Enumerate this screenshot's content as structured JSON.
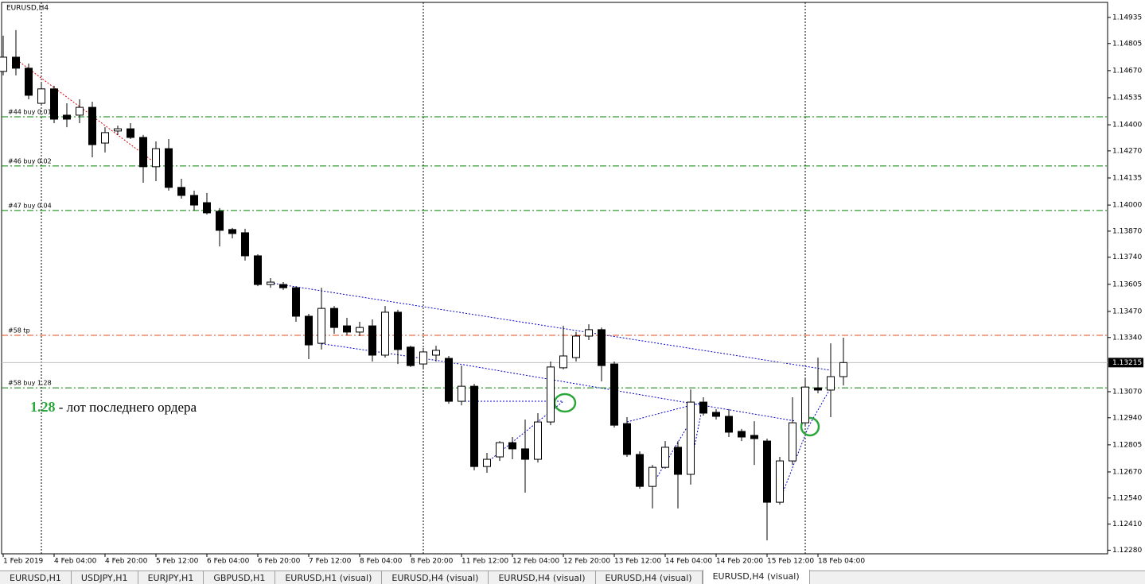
{
  "chart_data": {
    "type": "candlestick",
    "title": "EURUSD,H4",
    "categories": [
      "1 Feb 2019",
      null,
      null,
      null,
      "4 Feb 04:00",
      null,
      null,
      null,
      "4 Feb 20:00",
      null,
      null,
      null,
      "5 Feb 12:00",
      null,
      null,
      null,
      "6 Feb 04:00",
      null,
      null,
      null,
      "6 Feb 20:00",
      null,
      null,
      null,
      "7 Feb 12:00",
      null,
      null,
      null,
      "8 Feb 04:00",
      null,
      null,
      null,
      "8 Feb 20:00",
      null,
      null,
      null,
      "11 Feb 12:00",
      null,
      null,
      null,
      "12 Feb 04:00",
      null,
      null,
      null,
      "12 Feb 20:00",
      null,
      null,
      null,
      "13 Feb 12:00",
      null,
      null,
      null,
      "14 Feb 04:00",
      null,
      null,
      null,
      "14 Feb 20:00",
      null,
      null,
      null,
      "15 Feb 12:00",
      null,
      null,
      null,
      "18 Feb 04:00",
      null,
      null
    ],
    "open": [
      1.14666,
      1.14737,
      1.14682,
      1.14507,
      1.14579,
      1.14448,
      1.14448,
      1.14487,
      1.14309,
      1.14369,
      1.1438,
      1.14337,
      1.14191,
      1.14281,
      1.14088,
      1.14048,
      1.14012,
      1.13969,
      1.13878,
      1.13862,
      1.13747,
      1.13604,
      1.13604,
      1.13588,
      1.13446,
      1.13311,
      1.13485,
      1.13398,
      1.13367,
      1.13398,
      1.13252,
      1.13466,
      1.13292,
      1.13208,
      1.13252,
      1.13236,
      1.13022,
      1.13097,
      1.12697,
      1.12745,
      1.12816,
      1.12785,
      1.12733,
      1.12919,
      1.13189,
      1.1324,
      1.13347,
      1.13379,
      1.13208,
      1.12911,
      1.12757,
      1.12598,
      1.12693,
      1.12793,
      1.12658,
      1.13018,
      1.12967,
      1.12947,
      1.12872,
      1.12852,
      1.12824,
      1.12519,
      1.12725,
      1.12915,
      1.13089,
      1.13078,
      1.13145
    ],
    "high": [
      1.14844,
      1.14872,
      1.14705,
      1.14606,
      1.14594,
      1.14507,
      1.14527,
      1.14515,
      1.14388,
      1.14396,
      1.14408,
      1.14349,
      1.14317,
      1.14329,
      1.14131,
      1.14072,
      1.1406,
      1.13985,
      1.13886,
      1.13882,
      1.13755,
      1.13636,
      1.13616,
      1.13596,
      1.13458,
      1.13588,
      1.13497,
      1.13438,
      1.13418,
      1.1343,
      1.13497,
      1.13478,
      1.13299,
      1.13288,
      1.13299,
      1.13248,
      1.132,
      1.13109,
      1.12765,
      1.12824,
      1.12844,
      1.12931,
      1.12963,
      1.1322,
      1.13398,
      1.13367,
      1.13406,
      1.1339,
      1.1322,
      1.12943,
      1.12773,
      1.12705,
      1.12824,
      1.12824,
      1.13081,
      1.13042,
      1.12983,
      1.12983,
      1.12884,
      1.12923,
      1.12836,
      1.12745,
      1.13042,
      1.13137,
      1.1324,
      1.13311,
      1.13339
    ],
    "low": [
      1.14646,
      1.14646,
      1.14527,
      1.14495,
      1.14408,
      1.14388,
      1.14408,
      1.14238,
      1.14262,
      1.14349,
      1.14329,
      1.14111,
      1.14119,
      1.14072,
      1.14032,
      1.13973,
      1.13953,
      1.13794,
      1.13834,
      1.13723,
      1.13596,
      1.13588,
      1.13577,
      1.13418,
      1.13232,
      1.1328,
      1.13359,
      1.13351,
      1.13347,
      1.1322,
      1.1324,
      1.13208,
      1.13193,
      1.13181,
      1.1322,
      1.1301,
      1.13002,
      1.12678,
      1.12666,
      1.12725,
      1.12733,
      1.12567,
      1.12717,
      1.12903,
      1.13181,
      1.1322,
      1.13327,
      1.13121,
      1.12891,
      1.12745,
      1.12586,
      1.12488,
      1.12686,
      1.12488,
      1.12607,
      1.12951,
      1.12931,
      1.12844,
      1.12824,
      1.12705,
      1.12329,
      1.12507,
      1.12705,
      1.12903,
      1.13062,
      1.12943,
      1.13101
    ],
    "close": [
      1.14737,
      1.14682,
      1.14547,
      1.14579,
      1.14428,
      1.14428,
      1.14487,
      1.14301,
      1.14361,
      1.1438,
      1.14337,
      1.14191,
      1.14281,
      1.14088,
      1.14048,
      1.14,
      1.13961,
      1.13874,
      1.13858,
      1.13747,
      1.13604,
      1.13616,
      1.13588,
      1.13446,
      1.13303,
      1.13485,
      1.1339,
      1.13367,
      1.1339,
      1.13252,
      1.13466,
      1.1328,
      1.132,
      1.13268,
      1.13276,
      1.13022,
      1.13097,
      1.12697,
      1.12733,
      1.12816,
      1.12785,
      1.12733,
      1.12919,
      1.13193,
      1.13248,
      1.13347,
      1.13379,
      1.132,
      1.12903,
      1.12757,
      1.12598,
      1.12693,
      1.12793,
      1.12658,
      1.13018,
      1.12963,
      1.12947,
      1.12868,
      1.12844,
      1.12836,
      1.12519,
      1.12725,
      1.12915,
      1.13093,
      1.13078,
      1.13145,
      1.13215
    ],
    "up_color": "#ffffff",
    "down_color": "#000000",
    "ylim": [
      1.12262,
      1.1501
    ],
    "yticks": [
      1.14935,
      1.14805,
      {
        "value": 1.1467,
        "label": "1.14670"
      },
      1.14535,
      {
        "value": 1.144,
        "label": "1.14400"
      },
      {
        "value": 1.1427,
        "label": "1.14270"
      },
      1.14135,
      {
        "value": 1.14,
        "label": "1.14000"
      },
      {
        "value": 1.1387,
        "label": "1.13870"
      },
      {
        "value": 1.1374,
        "label": "1.13740"
      },
      1.13605,
      {
        "value": 1.1347,
        "label": "1.13470"
      },
      {
        "value": 1.1334,
        "label": "1.13340"
      },
      {
        "value": 1.1307,
        "label": "1.13070"
      },
      {
        "value": 1.1294,
        "label": "1.12940"
      },
      1.12805,
      {
        "value": 1.1267,
        "label": "1.12670"
      },
      {
        "value": 1.1254,
        "label": "1.12540"
      },
      {
        "value": 1.1241,
        "label": "1.12410"
      },
      {
        "value": 1.1228,
        "label": "1.12280"
      }
    ],
    "current_price": 1.13215,
    "levels": [
      {
        "label": "#44 buy 0.01",
        "value": 1.1444,
        "color": "#008000"
      },
      {
        "label": "#46 buy 0.02",
        "value": 1.14195,
        "color": "#008000"
      },
      {
        "label": "#47 buy 0.04",
        "value": 1.13973,
        "color": "#008000"
      },
      {
        "label": "#58 tp",
        "value": 1.13351,
        "color": "#e8491d"
      },
      {
        "label": "#58 buy 1.28",
        "value": 1.13089,
        "color": "#008000"
      }
    ],
    "annotation": {
      "lot": 1.28,
      "text": " - лот последнего ордера"
    }
  },
  "tabs": [
    {
      "label": "EURUSD,H1"
    },
    {
      "label": "USDJPY,H1"
    },
    {
      "label": "EURJPY,H1"
    },
    {
      "label": "GBPUSD,H1"
    },
    {
      "label": "EURUSD,H1 (visual)"
    },
    {
      "label": "EURUSD,H4 (visual)"
    },
    {
      "label": "EURUSD,H4 (visual)"
    },
    {
      "label": "EURUSD,H4 (visual)"
    },
    {
      "label": "EURUSD,H4 (visual)",
      "active": true
    }
  ]
}
